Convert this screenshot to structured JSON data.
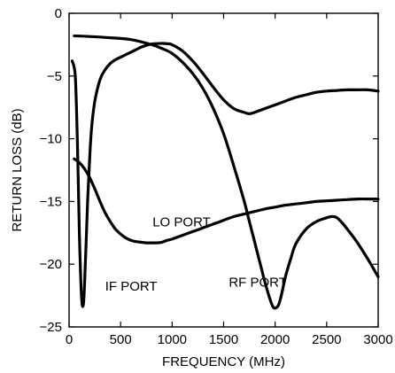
{
  "chart_data": {
    "type": "line",
    "title": "",
    "xlabel": "FREQUENCY (MHz)",
    "ylabel": "RETURN LOSS (dB)",
    "xlim": [
      0,
      3000
    ],
    "ylim": [
      -25,
      0
    ],
    "xticks": [
      0,
      500,
      1000,
      1500,
      2000,
      2500,
      3000
    ],
    "yticks": [
      0,
      -5,
      -10,
      -15,
      -20,
      -25
    ],
    "xtick_labels": [
      "0",
      "500",
      "1000",
      "1500",
      "2000",
      "2500",
      "3000"
    ],
    "ytick_labels": [
      "0",
      "−5",
      "−10",
      "−15",
      "−20",
      "−25"
    ],
    "grid": false,
    "line_color": "#000000",
    "series": [
      {
        "name": "LO PORT",
        "x": [
          50,
          100,
          150,
          200,
          250,
          300,
          350,
          400,
          450,
          500,
          550,
          600,
          650,
          700,
          750,
          800,
          850,
          900,
          950,
          1000,
          1100,
          1200,
          1300,
          1400,
          1500,
          1600,
          1700,
          1800,
          1900,
          2000,
          2100,
          2200,
          2300,
          2400,
          2500,
          2600,
          2700,
          2800,
          2900,
          3000
        ],
        "y": [
          -11.6,
          -11.9,
          -12.4,
          -13.1,
          -14.0,
          -15.0,
          -15.9,
          -16.6,
          -17.2,
          -17.6,
          -17.9,
          -18.1,
          -18.2,
          -18.25,
          -18.3,
          -18.3,
          -18.3,
          -18.25,
          -18.1,
          -18.0,
          -17.7,
          -17.4,
          -17.1,
          -16.8,
          -16.5,
          -16.2,
          -16.0,
          -15.8,
          -15.6,
          -15.45,
          -15.3,
          -15.2,
          -15.1,
          -15.0,
          -14.95,
          -14.9,
          -14.85,
          -14.8,
          -14.8,
          -14.8
        ]
      },
      {
        "name": "IF PORT",
        "x": [
          30,
          60,
          80,
          100,
          120,
          140,
          160,
          180,
          200,
          220,
          250,
          300,
          350,
          400,
          450,
          500,
          550,
          600,
          650,
          700,
          800,
          900,
          950,
          1000,
          1100,
          1200,
          1300,
          1400,
          1500,
          1600,
          1700,
          1750,
          1800,
          1900,
          2000,
          2100,
          2200,
          2300,
          2400,
          2500,
          2600,
          2700,
          2800,
          2900,
          3000
        ],
        "y": [
          -3.8,
          -5.0,
          -10.0,
          -17.5,
          -22.5,
          -23.1,
          -19.5,
          -15.0,
          -11.5,
          -9.0,
          -7.0,
          -5.3,
          -4.5,
          -4.0,
          -3.7,
          -3.5,
          -3.3,
          -3.1,
          -2.9,
          -2.7,
          -2.45,
          -2.4,
          -2.42,
          -2.5,
          -3.0,
          -3.8,
          -4.8,
          -5.9,
          -6.9,
          -7.6,
          -7.9,
          -8.0,
          -7.9,
          -7.6,
          -7.3,
          -7.0,
          -6.7,
          -6.5,
          -6.3,
          -6.2,
          -6.15,
          -6.1,
          -6.1,
          -6.1,
          -6.2
        ]
      },
      {
        "name": "RF PORT",
        "x": [
          50,
          200,
          400,
          600,
          800,
          900,
          1000,
          1100,
          1200,
          1300,
          1400,
          1500,
          1600,
          1700,
          1750,
          1800,
          1850,
          1900,
          1950,
          1980,
          2000,
          2030,
          2060,
          2100,
          2150,
          2200,
          2300,
          2400,
          2500,
          2550,
          2600,
          2650,
          2700,
          2800,
          2900,
          3000
        ],
        "y": [
          -1.8,
          -1.85,
          -1.95,
          -2.1,
          -2.5,
          -2.8,
          -3.2,
          -3.9,
          -4.8,
          -6.0,
          -7.6,
          -9.6,
          -12.2,
          -15.0,
          -16.6,
          -18.2,
          -19.8,
          -21.4,
          -22.8,
          -23.4,
          -23.5,
          -23.3,
          -22.5,
          -21.0,
          -19.6,
          -18.4,
          -17.2,
          -16.6,
          -16.3,
          -16.2,
          -16.3,
          -16.7,
          -17.2,
          -18.3,
          -19.6,
          -21.0
        ]
      }
    ],
    "annotations": [
      {
        "text": "LO PORT",
        "x": 810,
        "y": -17.0
      },
      {
        "text": "IF PORT",
        "x": 350,
        "y": -22.1
      },
      {
        "text": "RF PORT",
        "x": 1550,
        "y": -21.8
      }
    ]
  }
}
